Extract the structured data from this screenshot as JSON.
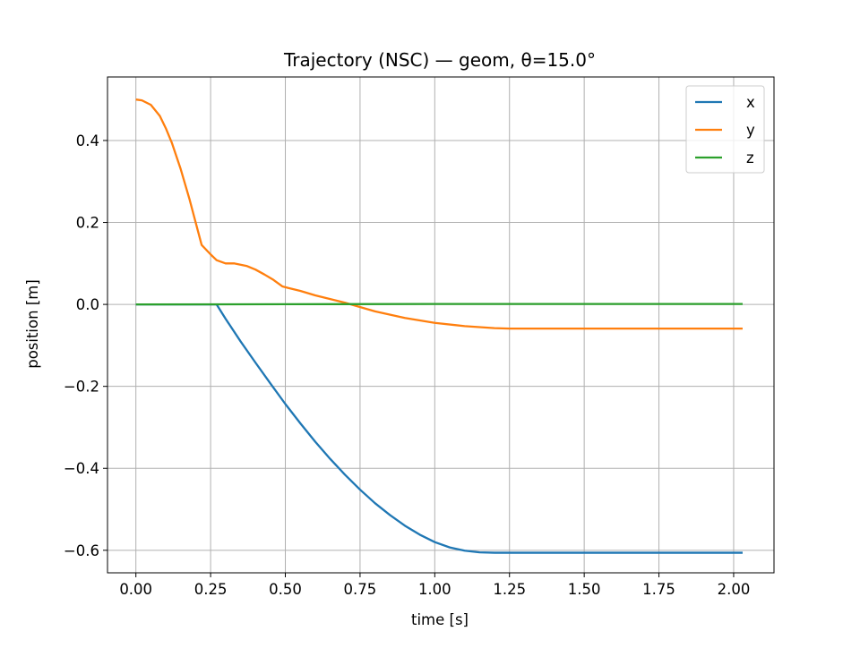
{
  "chart_data": {
    "type": "line",
    "title": "Trajectory (NSC) — geom, θ=15.0°",
    "xlabel": "time [s]",
    "ylabel": "position [m]",
    "xlim": [
      -0.095,
      2.135
    ],
    "ylim": [
      -0.655,
      0.555
    ],
    "grid": true,
    "legend_position": "top-right",
    "x_ticks": [
      0.0,
      0.25,
      0.5,
      0.75,
      1.0,
      1.25,
      1.5,
      1.75,
      2.0
    ],
    "x_tick_labels": [
      "0.00",
      "0.25",
      "0.50",
      "0.75",
      "1.00",
      "1.25",
      "1.50",
      "1.75",
      "2.00"
    ],
    "y_ticks": [
      -0.6,
      -0.4,
      -0.2,
      0.0,
      0.2,
      0.4
    ],
    "y_tick_labels": [
      "−0.6",
      "−0.4",
      "−0.2",
      "0.0",
      "0.2",
      "0.4"
    ],
    "series": [
      {
        "name": "x",
        "color": "#1f77b4",
        "x": [
          0.0,
          0.1,
          0.2,
          0.27,
          0.3,
          0.35,
          0.4,
          0.45,
          0.5,
          0.55,
          0.6,
          0.65,
          0.7,
          0.75,
          0.8,
          0.85,
          0.9,
          0.95,
          1.0,
          1.05,
          1.1,
          1.15,
          1.2,
          1.25,
          1.3,
          1.5,
          1.75,
          2.03
        ],
        "y": [
          0.0,
          0.0,
          0.0,
          0.0,
          -0.035,
          -0.09,
          -0.142,
          -0.193,
          -0.243,
          -0.29,
          -0.335,
          -0.377,
          -0.416,
          -0.452,
          -0.485,
          -0.514,
          -0.54,
          -0.562,
          -0.58,
          -0.593,
          -0.601,
          -0.605,
          -0.606,
          -0.606,
          -0.606,
          -0.606,
          -0.606,
          -0.606
        ]
      },
      {
        "name": "y",
        "color": "#ff7f0e",
        "x": [
          0.0,
          0.02,
          0.05,
          0.08,
          0.1,
          0.12,
          0.15,
          0.18,
          0.2,
          0.22,
          0.25,
          0.27,
          0.3,
          0.33,
          0.37,
          0.4,
          0.43,
          0.46,
          0.49,
          0.51,
          0.55,
          0.6,
          0.7,
          0.8,
          0.9,
          1.0,
          1.1,
          1.2,
          1.25,
          1.3,
          1.5,
          1.75,
          2.03
        ],
        "y": [
          0.5,
          0.498,
          0.487,
          0.46,
          0.43,
          0.395,
          0.33,
          0.255,
          0.2,
          0.145,
          0.122,
          0.108,
          0.1,
          0.1,
          0.094,
          0.085,
          0.073,
          0.06,
          0.044,
          0.04,
          0.033,
          0.022,
          0.004,
          -0.017,
          -0.033,
          -0.045,
          -0.053,
          -0.058,
          -0.059,
          -0.059,
          -0.059,
          -0.059,
          -0.059
        ]
      },
      {
        "name": "z",
        "color": "#2ca02c",
        "x": [
          0.0,
          0.5,
          1.0,
          1.5,
          2.03
        ],
        "y": [
          0.0,
          0.0005,
          0.001,
          0.001,
          0.001
        ]
      }
    ]
  }
}
